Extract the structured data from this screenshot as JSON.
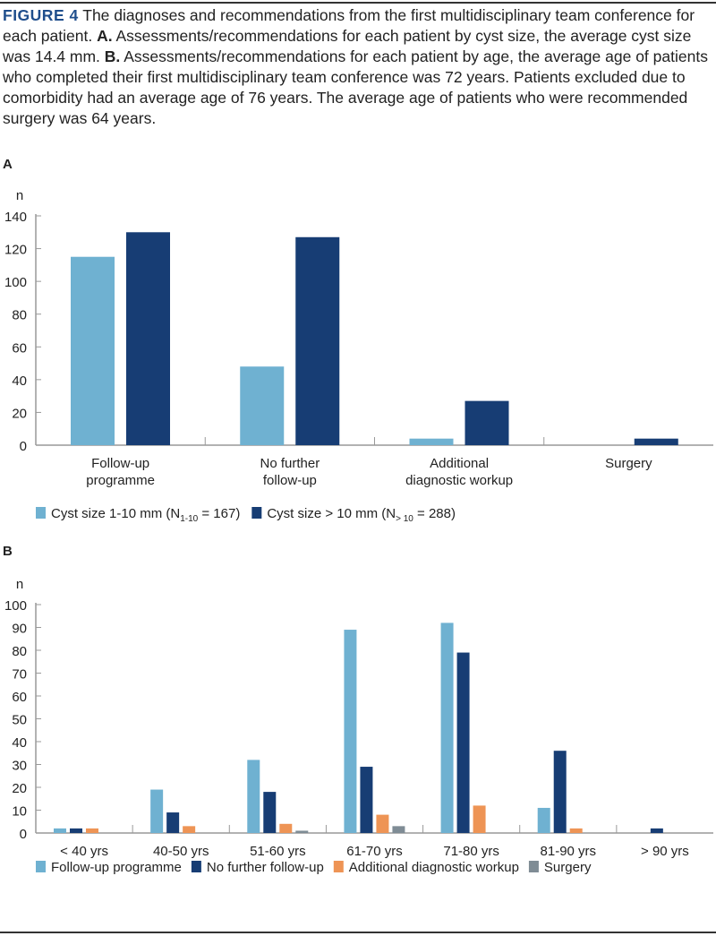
{
  "caption": {
    "figure_label": "FIGURE 4",
    "text": " The diagnoses and recommendations from the first multidisciplinary team conference for each patient. ",
    "a_label": "A.",
    "a_text": " Assessments/recommendations for each patient by cyst size, the average cyst size was 14.4 mm. ",
    "b_label": "B.",
    "b_text": " Assessments/recommendations for each patient by age, the average age of patients who completed their first multidisciplinary team conference was 72 years. Patients excluded due to comorbidity had an average age of 76 years. The average age of patients who were recommended surgery was 64 years."
  },
  "chart_data": [
    {
      "panel": "A",
      "type": "bar",
      "ylabel": "n",
      "ylim": [
        0,
        140
      ],
      "yticks": [
        0,
        20,
        40,
        60,
        80,
        100,
        120,
        140
      ],
      "categories": [
        [
          "Follow-up",
          "programme"
        ],
        [
          "No further",
          "follow-up"
        ],
        [
          "Additional",
          "diagnostic workup"
        ],
        [
          "Surgery"
        ]
      ],
      "series": [
        {
          "name": "Cyst size 1-10 mm (N1-10 = 167)",
          "legend_main": "Cyst size 1-10 mm (N",
          "legend_sub": "1-10",
          "legend_end": " = 167)",
          "color": "#6fb1d1",
          "values": [
            115,
            48,
            4,
            0
          ]
        },
        {
          "name": "Cyst size > 10 mm (N> 10 = 288)",
          "legend_main": "Cyst size > 10 mm (N",
          "legend_sub": "> 10",
          "legend_end": " = 288)",
          "color": "#173d74",
          "values": [
            130,
            127,
            27,
            4
          ]
        }
      ]
    },
    {
      "panel": "B",
      "type": "bar",
      "ylabel": "n",
      "ylim": [
        0,
        100
      ],
      "yticks": [
        0,
        10,
        20,
        30,
        40,
        50,
        60,
        70,
        80,
        90,
        100
      ],
      "categories": [
        "< 40 yrs",
        "40-50 yrs",
        "51-60 yrs",
        "61-70 yrs",
        "71-80 yrs",
        "81-90 yrs",
        "> 90 yrs"
      ],
      "series": [
        {
          "name": "Follow-up programme",
          "color": "#6fb1d1",
          "values": [
            2,
            19,
            32,
            89,
            92,
            11,
            0
          ]
        },
        {
          "name": "No further follow-up",
          "color": "#173d74",
          "values": [
            2,
            9,
            18,
            29,
            79,
            36,
            2
          ]
        },
        {
          "name": "Additional diagnostic workup",
          "color": "#ee9455",
          "values": [
            2,
            3,
            4,
            8,
            12,
            2,
            0
          ]
        },
        {
          "name": "Surgery",
          "color": "#7f8c95",
          "values": [
            0,
            0,
            1,
            3,
            0,
            0,
            0
          ]
        }
      ]
    }
  ]
}
